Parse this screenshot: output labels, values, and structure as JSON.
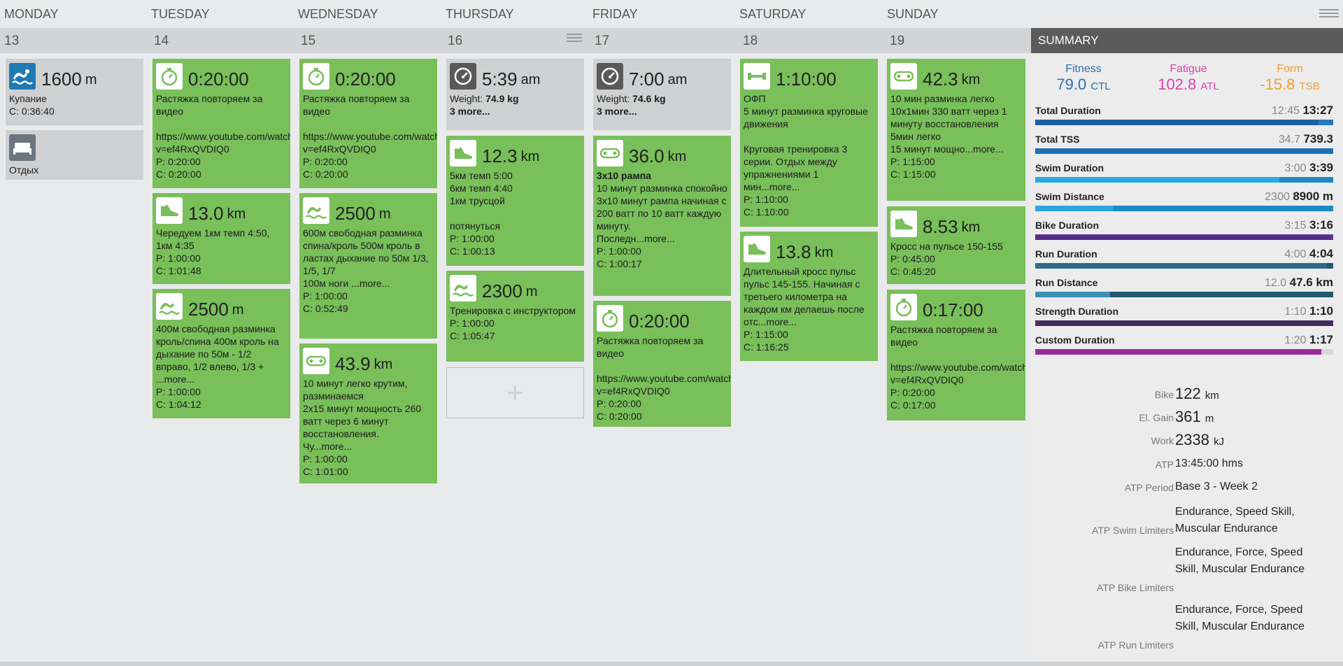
{
  "days": [
    {
      "label": "MONDAY",
      "date": "13"
    },
    {
      "label": "TUESDAY",
      "date": "14"
    },
    {
      "label": "WEDNESDAY",
      "date": "15"
    },
    {
      "label": "THURSDAY",
      "date": "16"
    },
    {
      "label": "FRIDAY",
      "date": "17"
    },
    {
      "label": "SATURDAY",
      "date": "18"
    },
    {
      "label": "SUNDAY",
      "date": "19"
    }
  ],
  "mon": {
    "swim": {
      "value": "1600",
      "unit": "m",
      "desc": "Купание",
      "c": "C: 0:36:40"
    },
    "rest": {
      "desc": "Отдых"
    }
  },
  "tue": {
    "stretch": {
      "value": "0:20:00",
      "desc": "Растяжка повторяем за видео\n\nhttps://www.youtube.com/watch?v=ef4RxQVDIQ0",
      "p": "P: 0:20:00",
      "c": "C: 0:20:00"
    },
    "run": {
      "value": "13.0",
      "unit": "km",
      "desc": "Чередуем 1км темп 4:50, 1км 4:35",
      "p": "P: 1:00:00",
      "c": "C: 1:01:48"
    },
    "swim": {
      "value": "2500",
      "unit": "m",
      "desc": "400м свободная разминка кроль/спина 400м кроль на дыхание по 50м - 1/2 вправо, 1/2 влево, 1/3 + ...more...",
      "p": "P: 1:00:00",
      "c": "C: 1:04:12"
    }
  },
  "wed": {
    "stretch": {
      "value": "0:20:00",
      "desc": "Растяжка повторяем за видео\n\nhttps://www.youtube.com/watch?v=ef4RxQVDIQ0",
      "p": "P: 0:20:00",
      "c": "C: 0:20:00"
    },
    "swim": {
      "value": "2500",
      "unit": "m",
      "desc": "600м свободная разминка спина/кроль 500м кроль в ластах дыхание по 50м 1/3, 1/5, 1/7\n100м ноги ...more...",
      "p": "P: 1:00:00",
      "c": "C: 0:52:49"
    },
    "bike": {
      "value": "43.9",
      "unit": "km",
      "desc": "10 минут легко крутим, разминаемся\n2x15 минут мощность 260 ватт через 6 минут восстановления.\nЧу...more...",
      "p": "P: 1:00:00",
      "c": "C: 1:01:00"
    }
  },
  "thu": {
    "metrics": {
      "value": "5:39",
      "unit": "am",
      "weight_label": "Weight:",
      "weight": "74.9 kg",
      "more": "3 more..."
    },
    "run": {
      "value": "12.3",
      "unit": "km",
      "desc": "5км темп 5:00\n6км темп 4:40\n1км трусцой\n\nпотянуться",
      "p": "P: 1:00:00",
      "c": "C: 1:00:13"
    },
    "swim": {
      "value": "2300",
      "unit": "m",
      "desc": "Тренировка с инструктором",
      "p": "P: 1:00:00",
      "c": "C: 1:05:47"
    },
    "add": "+"
  },
  "fri": {
    "metrics": {
      "value": "7:00",
      "unit": "am",
      "weight_label": "Weight:",
      "weight": "74.6 kg",
      "more": "3 more..."
    },
    "bike": {
      "value": "36.0",
      "unit": "km",
      "title": "3x10 рампа",
      "desc": "10 минут разминка спокойно\n3x10 минут рампа начиная с 200 ватт по 10 ватт каждую минуту.\nПоследн...more...",
      "p": "P: 1:00:00",
      "c": "C: 1:00:17"
    },
    "stretch": {
      "value": "0:20:00",
      "desc": "Растяжка повторяем за видео\n\nhttps://www.youtube.com/watch?v=ef4RxQVDIQ0",
      "p": "P: 0:20:00",
      "c": "C: 0:20:00"
    }
  },
  "sat": {
    "strength": {
      "value": "1:10:00",
      "desc": "ОФП\n5 минут разминка круговые движения\n\nКруговая тренировка 3 серии. Отдых между упражнениями 1 мин...more...",
      "p": "P: 1:10:00",
      "c": "C: 1:10:00"
    },
    "run": {
      "value": "13.8",
      "unit": "km",
      "desc": "Длительный кросс пульс пульс 145-155. Начиная с третьего километра на каждом км делаешь после отс...more...",
      "p": "P: 1:15:00",
      "c": "C: 1:16:25"
    }
  },
  "sun": {
    "bike": {
      "value": "42.3",
      "unit": "km",
      "desc": "10 мин разминка легко\n10x1мин 330 ватт через 1 минуту восстановления\n5мин легко\n15 минут мощно...more...",
      "p": "P: 1:15:00",
      "c": "C: 1:15:00"
    },
    "run": {
      "value": "8.53",
      "unit": "km",
      "desc": "Кросс на пульсе 150-155",
      "p": "P: 0:45:00",
      "c": "C: 0:45:20"
    },
    "stretch": {
      "value": "0:17:00",
      "desc": "Растяжка повторяем за видео\n\nhttps://www.youtube.com/watch?v=ef4RxQVDIQ0",
      "p": "P: 0:20:00",
      "c": "C: 0:17:00"
    }
  },
  "summary": {
    "title": "SUMMARY",
    "fitness": {
      "label": "Fitness",
      "value": "79.0",
      "unit": "CTL",
      "color": "#2f6fb0"
    },
    "fatigue": {
      "label": "Fatigue",
      "value": "102.8",
      "unit": "ATL",
      "color": "#e040b0"
    },
    "form": {
      "label": "Form",
      "value": "-15.8",
      "unit": "TSB",
      "color": "#f0a030"
    },
    "metrics": [
      {
        "name": "Total Duration",
        "planned": "12:45",
        "completed": "13:27",
        "fraction": 1.0,
        "planned_fraction": 0.95,
        "color": "#1f5fa0",
        "color2": "#2a78c0"
      },
      {
        "name": "Total TSS",
        "planned": "34.7",
        "completed": "739.3",
        "fraction": 1.0,
        "planned_fraction": 0.047,
        "color": "#1f6fb8",
        "color2": "#1f6fb8"
      },
      {
        "name": "Swim Duration",
        "planned": "3:00",
        "completed": "3:39",
        "fraction": 1.0,
        "planned_fraction": 0.82,
        "color": "#2aa7e0",
        "color2": "#1b8ac2"
      },
      {
        "name": "Swim Distance",
        "planned": "2300",
        "completed": "8900 m",
        "fraction": 1.0,
        "planned_fraction": 0.26,
        "color": "#2aa7e0",
        "color2": "#1b8ac2"
      },
      {
        "name": "Bike Duration",
        "planned": "3:15",
        "completed": "3:16",
        "fraction": 1.0,
        "planned_fraction": 0.99,
        "color": "#5a2a8a",
        "color2": "#6a34a0"
      },
      {
        "name": "Run Duration",
        "planned": "4:00",
        "completed": "4:04",
        "fraction": 1.0,
        "planned_fraction": 0.98,
        "color": "#2f6a86",
        "color2": "#23586f"
      },
      {
        "name": "Run Distance",
        "planned": "12.0",
        "completed": "47.6 km",
        "fraction": 1.0,
        "planned_fraction": 0.25,
        "color": "#3a8fb5",
        "color2": "#23586f"
      },
      {
        "name": "Strength Duration",
        "planned": "1:10",
        "completed": "1:10",
        "fraction": 1.0,
        "planned_fraction": 1.0,
        "color": "#4a2a5e",
        "color2": "#4a2a5e"
      },
      {
        "name": "Custom Duration",
        "planned": "1:20",
        "completed": "1:17",
        "fraction": 0.96,
        "planned_fraction": 0.96,
        "color": "#9a2a9a",
        "color2": "#9a2a9a"
      }
    ],
    "stats": [
      {
        "key": "Bike",
        "value": "122",
        "unit": "km"
      },
      {
        "key": "El. Gain",
        "value": "361",
        "unit": "m"
      },
      {
        "key": "Work",
        "value": "2338",
        "unit": "kJ"
      },
      {
        "key": "ATP",
        "value": "13:45:00 hms"
      },
      {
        "key": "ATP Period",
        "value": "Base 3 - Week 2"
      },
      {
        "key": "ATP Swim Limiters",
        "value": "Endurance, Speed Skill, Muscular Endurance"
      },
      {
        "key": "ATP Bike Limiters",
        "value": "Endurance, Force, Speed Skill, Muscular Endurance"
      },
      {
        "key": "ATP Run Limiters",
        "value": "Endurance, Force, Speed Skill, Muscular Endurance"
      }
    ]
  }
}
